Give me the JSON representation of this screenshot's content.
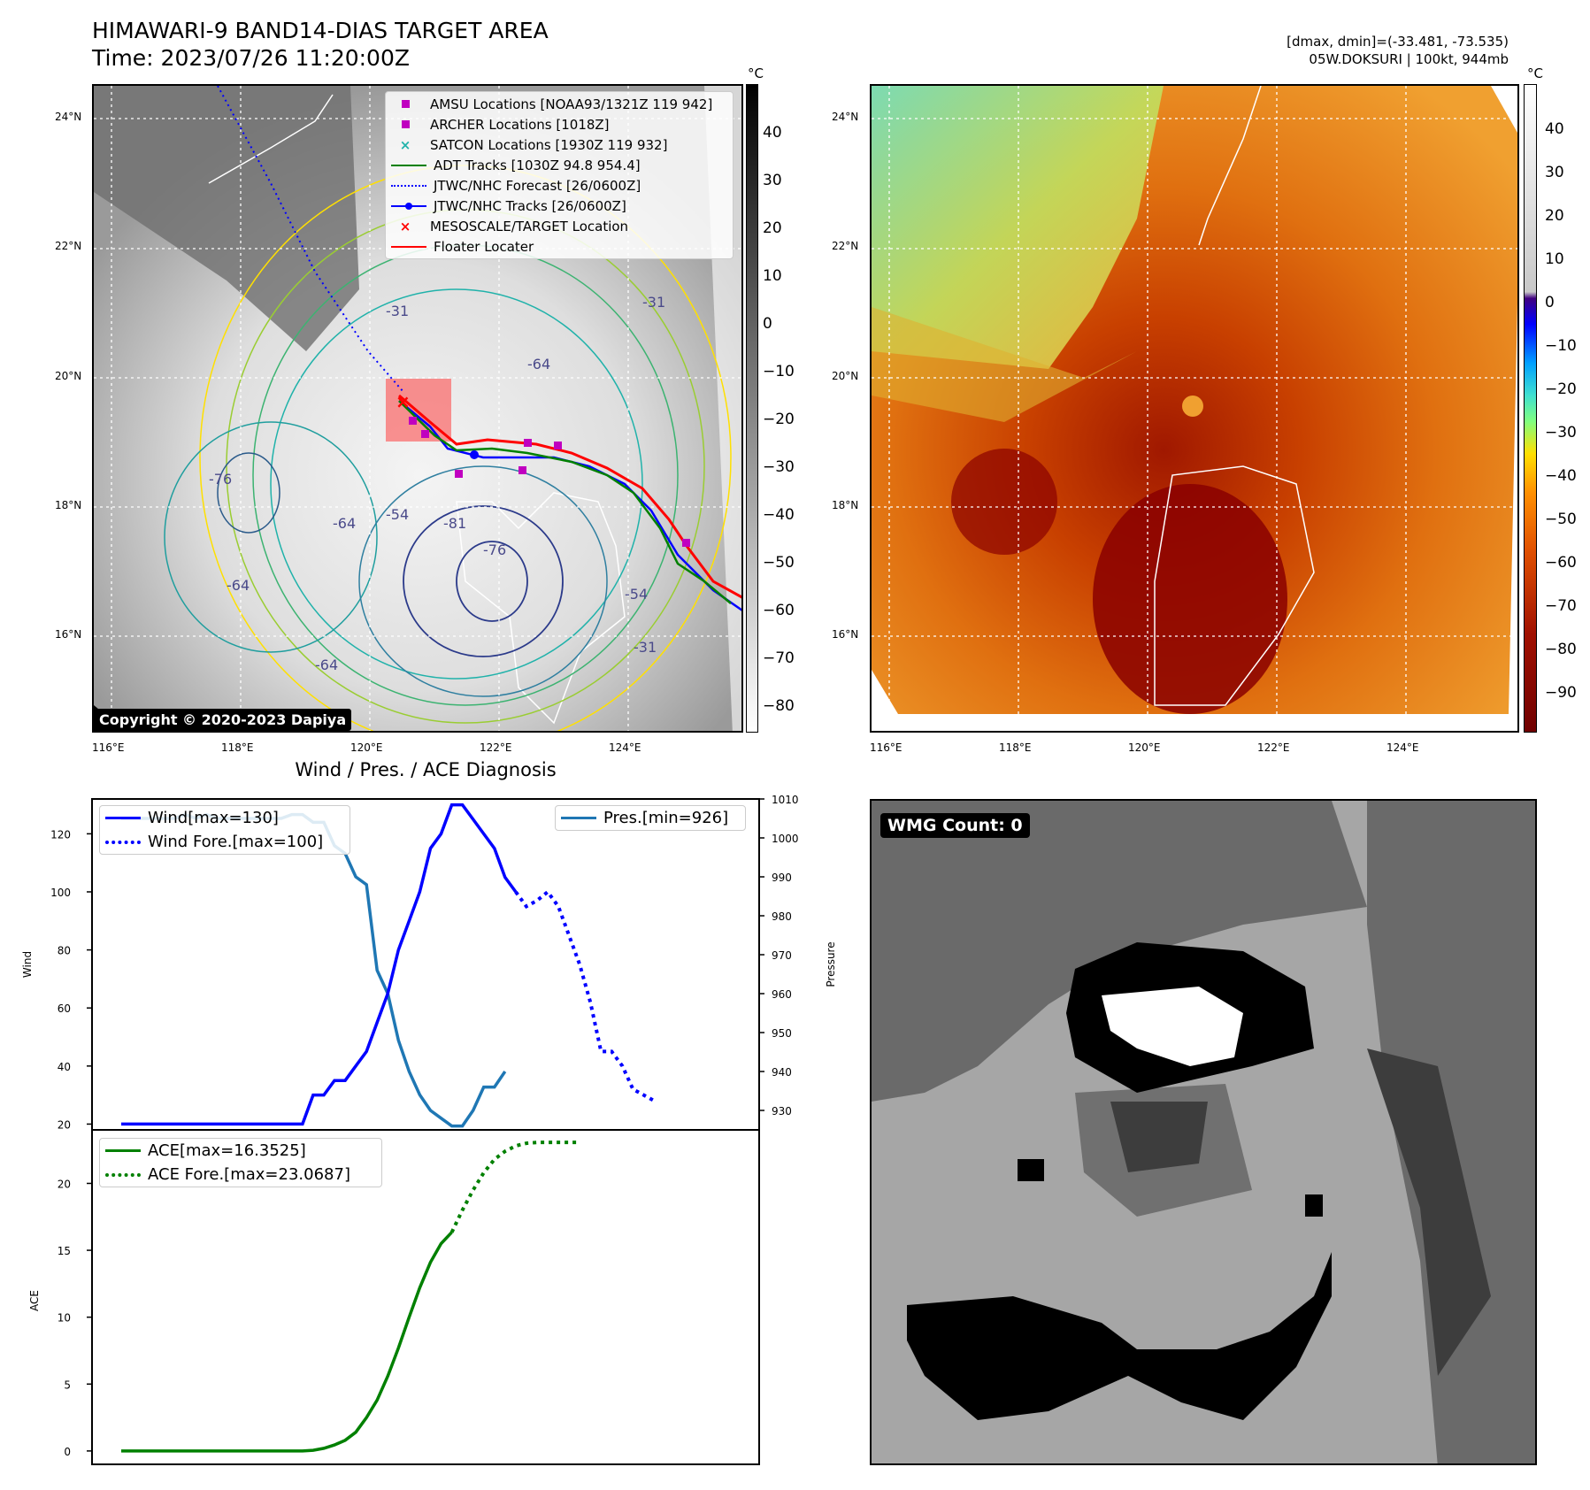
{
  "header": {
    "title_line1": "HIMAWARI-9 BAND14-DIAS TARGET AREA",
    "title_line2": "Time: 2023/07/26 11:20:00Z",
    "right_line1": "[dmax, dmin]=(-33.481, -73.535)",
    "right_line2": "05W.DOKSURI | 100kt, 944mb"
  },
  "colors": {
    "wind": "#0000ff",
    "pres": "#1f77b4",
    "ace": "#008000",
    "track_red": "#ff0000",
    "amsu": "#c000c0"
  },
  "map": {
    "lat_labels": [
      "24°N",
      "22°N",
      "20°N",
      "18°N",
      "16°N"
    ],
    "lon_labels": [
      "116°E",
      "118°E",
      "120°E",
      "122°E",
      "124°E"
    ],
    "copyright": "Copyright © 2020-2023 Dapiya",
    "contour_labels": [
      "-31",
      "-64",
      "-76",
      "-54",
      "-64",
      "-76",
      "-81",
      "-64",
      "-54",
      "-31",
      "-64",
      "-31"
    ],
    "legend": [
      {
        "label": "AMSU Locations [NOAA93/1321Z 119 942]",
        "marker": "square",
        "color": "#c000c0"
      },
      {
        "label": "ARCHER Locations [1018Z]",
        "marker": "square",
        "color": "#c000c0"
      },
      {
        "label": "SATCON Locations [1930Z 119 932]",
        "marker": "x",
        "color": "#20b2aa"
      },
      {
        "label": "ADT Tracks [1030Z 94.8 954.4]",
        "marker": "line",
        "color": "#008000"
      },
      {
        "label": "JTWC/NHC Forecast [26/0600Z]",
        "marker": "dotted",
        "color": "#0000ff"
      },
      {
        "label": "JTWC/NHC Tracks [26/0600Z]",
        "marker": "line-dot",
        "color": "#0000ff"
      },
      {
        "label": "MESOSCALE/TARGET Location",
        "marker": "x",
        "color": "#ff0000"
      },
      {
        "label": "Floater Locater",
        "marker": "line",
        "color": "#ff0000"
      }
    ],
    "cbar_unit": "°C",
    "cbar_gray_ticks": [
      "40",
      "30",
      "20",
      "10",
      "0",
      "−10",
      "−20",
      "−30",
      "−40",
      "−50",
      "−60",
      "−70",
      "−80"
    ],
    "cbar_color_ticks": [
      "40",
      "30",
      "20",
      "10",
      "0",
      "−10",
      "−20",
      "−30",
      "−40",
      "−50",
      "−60",
      "−70",
      "−80",
      "−90"
    ]
  },
  "chart_data": [
    {
      "type": "line",
      "title": "Wind / Pres. / ACE Diagnosis",
      "ylabel": "Wind",
      "ylabel_right": "Pressure",
      "ylim": [
        18,
        132
      ],
      "ylim_right": [
        925,
        1010
      ],
      "yticks": [
        "20",
        "40",
        "60",
        "80",
        "100",
        "120"
      ],
      "yticks_right": [
        "930",
        "940",
        "950",
        "960",
        "970",
        "980",
        "990",
        "1000",
        "1010"
      ],
      "series": [
        {
          "name": "Wind[max=130]",
          "values": [
            20,
            20,
            20,
            20,
            20,
            20,
            20,
            20,
            20,
            20,
            20,
            20,
            20,
            20,
            20,
            20,
            20,
            20,
            30,
            30,
            35,
            35,
            40,
            45,
            55,
            65,
            80,
            90,
            100,
            115,
            120,
            130,
            130,
            125,
            120,
            115,
            105,
            100
          ]
        },
        {
          "name": "Wind Fore.[max=100]",
          "values": [
            null,
            null,
            null,
            null,
            null,
            null,
            null,
            null,
            null,
            null,
            null,
            null,
            null,
            null,
            null,
            null,
            null,
            null,
            null,
            null,
            null,
            null,
            null,
            null,
            null,
            null,
            null,
            null,
            null,
            null,
            null,
            null,
            null,
            null,
            null,
            null,
            null,
            100,
            95,
            97,
            100,
            95,
            85,
            75,
            62,
            45,
            45,
            40,
            32,
            30,
            28
          ]
        },
        {
          "name": "Pres.[min=926]",
          "values": [
            1005,
            1005,
            1005,
            1005,
            1005,
            1005,
            1006,
            1005,
            1006,
            1005,
            1005,
            1005,
            1005,
            1005,
            1005,
            1005,
            1006,
            1006,
            1004,
            1004,
            998,
            996,
            990,
            988,
            966,
            960,
            948,
            940,
            934,
            930,
            928,
            926,
            926,
            930,
            936,
            936,
            940
          ]
        }
      ]
    },
    {
      "type": "line",
      "ylabel": "ACE",
      "ylim": [
        -1,
        24
      ],
      "yticks": [
        "0",
        "5",
        "10",
        "15",
        "20"
      ],
      "series": [
        {
          "name": "ACE[max=16.3525]",
          "values": [
            0,
            0,
            0,
            0,
            0,
            0,
            0,
            0,
            0,
            0,
            0,
            0,
            0,
            0,
            0,
            0,
            0,
            0,
            0.05,
            0.2,
            0.45,
            0.8,
            1.4,
            2.5,
            3.8,
            5.6,
            7.7,
            10.0,
            12.2,
            14.1,
            15.5,
            16.35
          ]
        },
        {
          "name": "ACE Fore.[max=23.0687]",
          "values": [
            null,
            null,
            null,
            null,
            null,
            null,
            null,
            null,
            null,
            null,
            null,
            null,
            null,
            null,
            null,
            null,
            null,
            null,
            null,
            null,
            null,
            null,
            null,
            null,
            null,
            null,
            null,
            null,
            null,
            null,
            null,
            16.35,
            18.0,
            19.5,
            20.8,
            21.8,
            22.4,
            22.8,
            23.0,
            23.06,
            23.07,
            23.07,
            23.07,
            23.07
          ]
        }
      ]
    }
  ],
  "wmg": {
    "badge": "WMG Count: 0"
  }
}
